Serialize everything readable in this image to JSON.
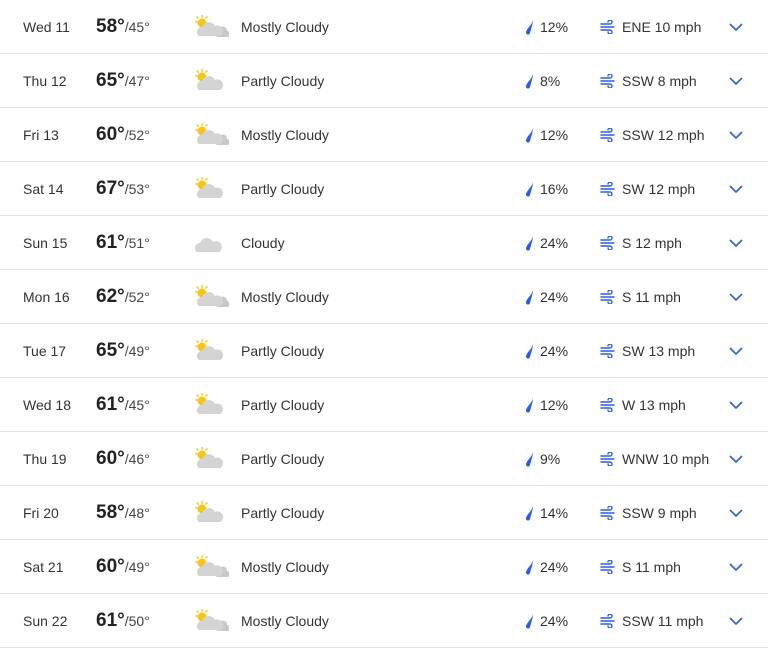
{
  "colors": {
    "accent": "#2b5ce6",
    "sun": "#f5c518",
    "cloud": "#d4d4d4"
  },
  "days": [
    {
      "day": "Wed 11",
      "hi": "58°",
      "lo": "/45°",
      "icon": "mostly-cloudy",
      "cond": "Mostly Cloudy",
      "precip": "12%",
      "wind": "ENE 10 mph"
    },
    {
      "day": "Thu 12",
      "hi": "65°",
      "lo": "/47°",
      "icon": "partly-cloudy",
      "cond": "Partly Cloudy",
      "precip": "8%",
      "wind": "SSW 8 mph"
    },
    {
      "day": "Fri 13",
      "hi": "60°",
      "lo": "/52°",
      "icon": "mostly-cloudy",
      "cond": "Mostly Cloudy",
      "precip": "12%",
      "wind": "SSW 12 mph"
    },
    {
      "day": "Sat 14",
      "hi": "67°",
      "lo": "/53°",
      "icon": "partly-cloudy",
      "cond": "Partly Cloudy",
      "precip": "16%",
      "wind": "SW 12 mph"
    },
    {
      "day": "Sun 15",
      "hi": "61°",
      "lo": "/51°",
      "icon": "cloudy",
      "cond": "Cloudy",
      "precip": "24%",
      "wind": "S 12 mph"
    },
    {
      "day": "Mon 16",
      "hi": "62°",
      "lo": "/52°",
      "icon": "mostly-cloudy",
      "cond": "Mostly Cloudy",
      "precip": "24%",
      "wind": "S 11 mph"
    },
    {
      "day": "Tue 17",
      "hi": "65°",
      "lo": "/49°",
      "icon": "partly-cloudy",
      "cond": "Partly Cloudy",
      "precip": "24%",
      "wind": "SW 13 mph"
    },
    {
      "day": "Wed 18",
      "hi": "61°",
      "lo": "/45°",
      "icon": "partly-cloudy",
      "cond": "Partly Cloudy",
      "precip": "12%",
      "wind": "W 13 mph"
    },
    {
      "day": "Thu 19",
      "hi": "60°",
      "lo": "/46°",
      "icon": "partly-cloudy",
      "cond": "Partly Cloudy",
      "precip": "9%",
      "wind": "WNW 10 mph"
    },
    {
      "day": "Fri 20",
      "hi": "58°",
      "lo": "/48°",
      "icon": "partly-cloudy",
      "cond": "Partly Cloudy",
      "precip": "14%",
      "wind": "SSW 9 mph"
    },
    {
      "day": "Sat 21",
      "hi": "60°",
      "lo": "/49°",
      "icon": "mostly-cloudy",
      "cond": "Mostly Cloudy",
      "precip": "24%",
      "wind": "S 11 mph"
    },
    {
      "day": "Sun 22",
      "hi": "61°",
      "lo": "/50°",
      "icon": "mostly-cloudy",
      "cond": "Mostly Cloudy",
      "precip": "24%",
      "wind": "SSW 11 mph"
    }
  ]
}
